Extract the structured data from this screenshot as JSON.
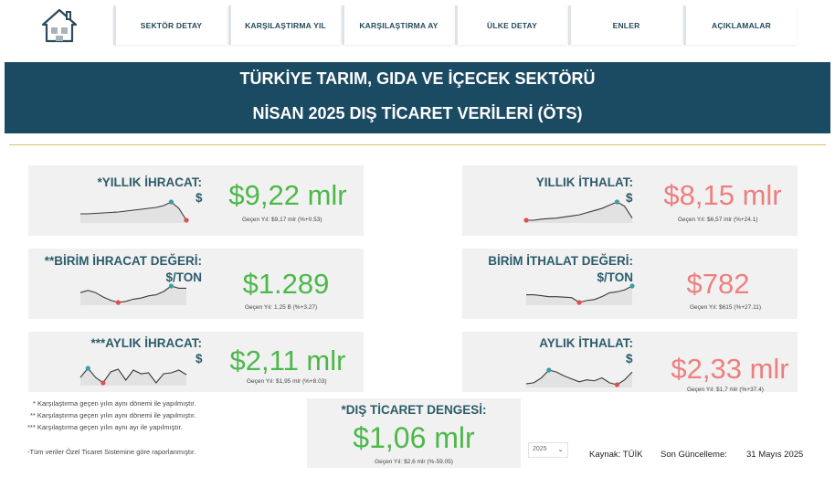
{
  "nav": {
    "items": [
      "SEKTÖR DETAY",
      "KARŞILAŞTIRMA YIL",
      "KARŞILAŞTIRMA AY",
      "ÜLKE DETAY",
      "ENLER",
      "AÇIKLAMALAR"
    ]
  },
  "banner": {
    "line1": "TÜRKİYE TARIM, GIDA VE İÇECEK SEKTÖRÜ",
    "line2": "NİSAN 2025 DIŞ TİCARET VERİLERİ (ÖTS)"
  },
  "colors": {
    "banner": "#1b4a63",
    "positive": "#4cb84a",
    "negative": "#ee7f7f",
    "label": "#2c5c6a"
  },
  "kpis": {
    "annual_export": {
      "label": "*YILLIK İHRACAT:",
      "unit": "$",
      "value": "$9,22 mlr",
      "note": "Geçen Yıl: $9,17 mlr (%+0.53)",
      "trend": [
        4.6,
        4.6,
        4.65,
        4.7,
        4.75,
        4.8,
        4.9,
        5.0,
        5.1,
        5.2,
        5.3,
        5.5,
        5.9,
        5.2,
        3.9
      ]
    },
    "annual_import": {
      "label": "YILLIK İTHALAT:",
      "unit": "$",
      "value": "$8,15 mlr",
      "note": "Geçen Yıl: $6,57 mlr (%+24.1)",
      "trend": [
        4.4,
        4.4,
        4.5,
        4.55,
        4.6,
        4.7,
        4.8,
        4.9,
        5.1,
        5.3,
        5.5,
        5.8,
        6.1,
        5.7,
        4.6
      ]
    },
    "unit_export": {
      "label": "**BİRİM İHRACAT DEĞERİ:",
      "unit": "$/TON",
      "value": "$1.289",
      "note": "Geçen Yıl: 1.25 B (%+3.27)",
      "trend": [
        5.2,
        5.4,
        5.2,
        4.8,
        4.5,
        4.3,
        4.4,
        4.6,
        4.7,
        4.9,
        5.0,
        5.3,
        5.8,
        5.6,
        5.6
      ]
    },
    "unit_import": {
      "label": "BİRİM İTHALAT DEĞERİ:",
      "unit": "$/TON",
      "value": "$782",
      "note": "Geçen Yıl: $615 (%+27.11)",
      "trend": [
        5.0,
        5.0,
        4.9,
        4.8,
        4.8,
        4.75,
        4.7,
        4.2,
        4.4,
        4.5,
        4.8,
        5.2,
        5.3,
        5.5,
        5.9
      ]
    },
    "monthly_export": {
      "label": "***AYLIK İHRACAT:",
      "unit": "$",
      "value": "$2,11 mlr",
      "note": "Geçen Yıl: $1,95 mlr (%+8.03)",
      "trend": [
        4.2,
        5.2,
        4.2,
        3.6,
        4.8,
        5.1,
        3.9,
        5.0,
        4.6,
        4.7,
        3.6,
        4.6,
        4.7,
        5.0,
        4.5
      ]
    },
    "monthly_import": {
      "label": "AYLIK İTHALAT:",
      "unit": "$",
      "value": "$2,33 mlr",
      "note": "Geçen Yıl: $1,7 mlr (%+37.4)",
      "trend": [
        3.8,
        3.9,
        4.4,
        5.2,
        5.0,
        4.6,
        4.3,
        4.0,
        4.2,
        4.1,
        4.4,
        3.9,
        3.7,
        4.2,
        5.0
      ]
    },
    "trade_balance": {
      "label": "*DIŞ TİCARET DENGESİ:",
      "value": "$1,06 mlr",
      "note": "Geçen Yıl: $2,6 mlr (%-59.05)"
    }
  },
  "notes": {
    "n1": "* Karşılaştırma geçen yılın aynı dönemi ile yapılmıştır.",
    "n2": "** Karşılaştırma geçen yılın aynı dönemi ile yapılmıştır.",
    "n3": "*** Karşılaştırma geçen yılın aynı ayı ile yapılmıştır.",
    "n4": "-Tüm veriler Özel Ticaret Sistemine göre raporlanmıştır."
  },
  "filter": {
    "year": "2025"
  },
  "footer": {
    "source": "Kaynak: TÜİK",
    "updated_label": "Son Güncelleme:",
    "updated_date": "31 Mayıs 2025"
  }
}
